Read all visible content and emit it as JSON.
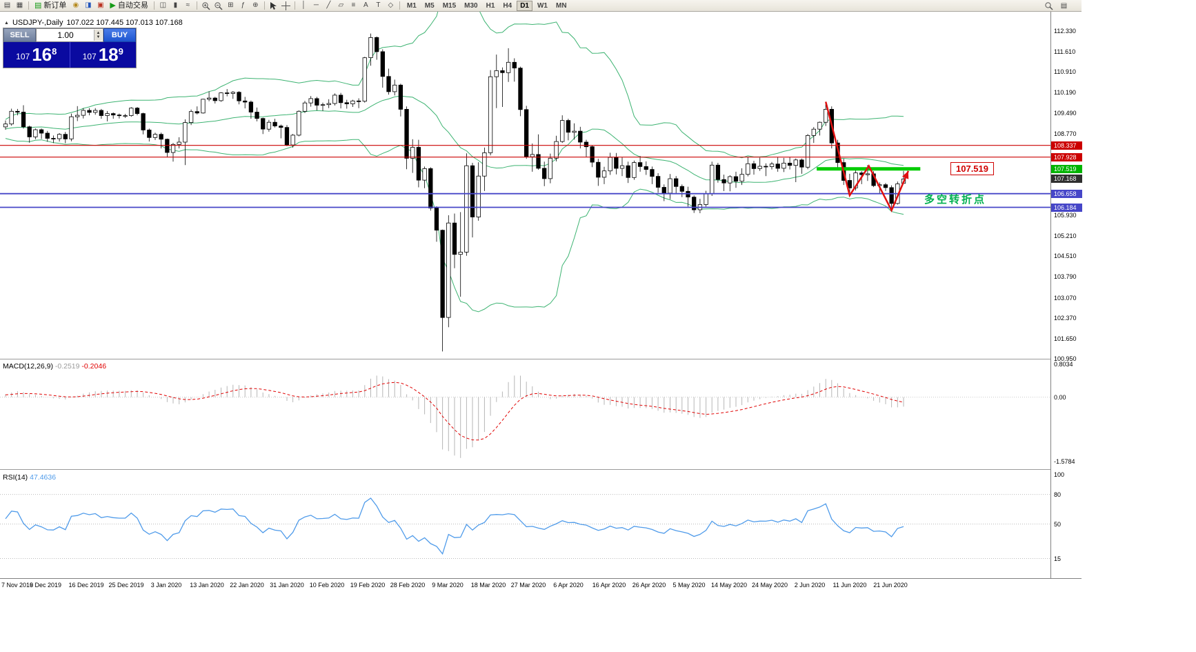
{
  "toolbar": {
    "new_order": "新订单",
    "auto_trading": "自动交易",
    "timeframes": [
      "M1",
      "M5",
      "M15",
      "M30",
      "H1",
      "H4",
      "D1",
      "W1",
      "MN"
    ],
    "active_timeframe": "D1"
  },
  "trade_panel": {
    "sell_label": "SELL",
    "buy_label": "BUY",
    "lot": "1.00",
    "sell_price": {
      "prefix": "107",
      "big": "16",
      "sup": "8"
    },
    "buy_price": {
      "prefix": "107",
      "big": "18",
      "sup": "9"
    }
  },
  "chart_data": {
    "type": "candlestick",
    "title": "USDJPY-,Daily",
    "symbol": "USDJPY-",
    "timeframe": "Daily",
    "ohlc_display": [
      "107.022",
      "107.445",
      "107.013",
      "107.168"
    ],
    "y_range": [
      100.95,
      112.33
    ],
    "x_labels": [
      "7 Nov 2019",
      "6 Dec 2019",
      "16 Dec 2019",
      "25 Dec 2019",
      "3 Jan 2020",
      "13 Jan 2020",
      "22 Jan 2020",
      "31 Jan 2020",
      "10 Feb 2020",
      "19 Feb 2020",
      "28 Feb 2020",
      "9 Mar 2020",
      "18 Mar 2020",
      "27 Mar 2020",
      "6 Apr 2020",
      "16 Apr 2020",
      "26 Apr 2020",
      "5 May 2020",
      "14 May 2020",
      "24 May 2020",
      "2 Jun 2020",
      "11 Jun 2020",
      "21 Jun 2020"
    ],
    "y_axis_labels": [
      "112.330",
      "111.610",
      "110.910",
      "110.190",
      "109.490",
      "108.770",
      "105.930",
      "105.210",
      "104.510",
      "103.790",
      "103.070",
      "102.370",
      "101.650",
      "100.950"
    ],
    "price_tags": [
      {
        "price": 108.337,
        "text": "108.337",
        "bg": "#CC0000"
      },
      {
        "price": 107.928,
        "text": "107.928",
        "bg": "#CC0000"
      },
      {
        "price": 107.519,
        "text": "107.519",
        "bg": "#00B400"
      },
      {
        "price": 107.168,
        "text": "107.168",
        "bg": "#2F2F2F"
      },
      {
        "price": 106.658,
        "text": "106.658",
        "bg": "#4646C8"
      },
      {
        "price": 106.184,
        "text": "106.184",
        "bg": "#4646C8"
      }
    ],
    "lines": [
      {
        "price": 108.337,
        "color": "#CC0000",
        "width": 1.2
      },
      {
        "price": 107.928,
        "color": "#CC0000",
        "width": 1.2
      },
      {
        "price": 106.658,
        "color": "#4646C8",
        "width": 1.8
      },
      {
        "price": 106.184,
        "color": "#4646C8",
        "width": 1.8
      }
    ],
    "support_level": {
      "price": 107.519,
      "label": "107.519",
      "color": "#00CC00",
      "from_index": 135.5,
      "to_index": 152.8,
      "width": 5
    },
    "annotation": {
      "text": "多空转折点",
      "color": "#00B050"
    },
    "zigzag": {
      "color": "#E01010",
      "width": 2.5,
      "points": [
        [
          137,
          109.85
        ],
        [
          141,
          106.6
        ],
        [
          144.2,
          107.62
        ],
        [
          148,
          106.08
        ],
        [
          150.8,
          107.45
        ]
      ]
    },
    "bollinger": {
      "period": 20,
      "deviation": 2,
      "color": "#3CB371"
    },
    "macd": {
      "label": "MACD(12,26,9)",
      "fast": 12,
      "slow": 26,
      "signal": 9,
      "value_main": "-0.2519",
      "value_signal": "-0.2046",
      "scale": [
        "0.8034",
        "0.00",
        "-1.5784"
      ],
      "range": [
        0.8034,
        -1.5784
      ],
      "hist_color": "#B6B6B6",
      "signal_color": "#E00000"
    },
    "rsi": {
      "label": "RSI(14)",
      "period": 14,
      "value": "47.4636",
      "levels": [
        80,
        50,
        15
      ],
      "scale_labels": [
        "100",
        "80",
        "50",
        "15"
      ],
      "range": [
        0,
        100
      ],
      "color": "#4F9BEA"
    },
    "indicator_warmup": [
      108.7,
      108.88,
      109.05,
      108.95,
      108.6,
      108.42,
      108.55,
      108.8,
      109.1,
      109.0,
      108.75,
      108.55,
      108.68,
      108.9,
      109.15,
      109.05,
      108.85,
      108.65,
      108.78,
      108.95,
      109.1,
      108.98,
      108.8,
      108.92,
      109.05,
      108.98
    ],
    "candles": [
      [
        108.98,
        109.2,
        108.88,
        109.08
      ],
      [
        109.08,
        109.61,
        109.02,
        109.52
      ],
      [
        109.52,
        109.6,
        109.38,
        109.49
      ],
      [
        109.49,
        109.73,
        108.92,
        108.98
      ],
      [
        108.98,
        109.02,
        108.43,
        108.63
      ],
      [
        108.63,
        108.92,
        108.55,
        108.88
      ],
      [
        108.88,
        108.92,
        108.56,
        108.76
      ],
      [
        108.76,
        108.84,
        108.46,
        108.58
      ],
      [
        108.58,
        108.68,
        108.42,
        108.57
      ],
      [
        108.57,
        108.76,
        108.47,
        108.72
      ],
      [
        108.72,
        108.8,
        108.41,
        108.56
      ],
      [
        108.56,
        109.44,
        108.48,
        109.33
      ],
      [
        109.33,
        109.7,
        109.18,
        109.38
      ],
      [
        109.38,
        109.63,
        109.27,
        109.55
      ],
      [
        109.55,
        109.63,
        109.38,
        109.48
      ],
      [
        109.48,
        109.63,
        109.4,
        109.55
      ],
      [
        109.55,
        109.6,
        109.26,
        109.37
      ],
      [
        109.37,
        109.53,
        109.17,
        109.44
      ],
      [
        109.44,
        109.48,
        109.26,
        109.39
      ],
      [
        109.39,
        109.44,
        109.27,
        109.37
      ],
      [
        109.37,
        109.43,
        109.29,
        109.37
      ],
      [
        109.37,
        109.66,
        109.33,
        109.63
      ],
      [
        109.63,
        109.67,
        109.38,
        109.44
      ],
      [
        109.44,
        109.47,
        108.72,
        108.87
      ],
      [
        108.87,
        108.92,
        108.47,
        108.61
      ],
      [
        108.61,
        108.78,
        108.52,
        108.72
      ],
      [
        108.72,
        108.78,
        108.23,
        108.55
      ],
      [
        108.55,
        108.57,
        107.92,
        108.09
      ],
      [
        108.09,
        108.42,
        107.77,
        108.37
      ],
      [
        108.37,
        108.62,
        108.23,
        108.45
      ],
      [
        108.45,
        109.24,
        107.65,
        109.13
      ],
      [
        109.13,
        109.58,
        109.04,
        109.51
      ],
      [
        109.51,
        109.69,
        109.41,
        109.46
      ],
      [
        109.46,
        109.95,
        109.44,
        109.94
      ],
      [
        109.94,
        110.21,
        109.87,
        109.98
      ],
      [
        109.98,
        110.02,
        109.79,
        109.89
      ],
      [
        109.89,
        110.18,
        109.85,
        110.16
      ],
      [
        110.16,
        110.29,
        110.04,
        110.14
      ],
      [
        110.14,
        110.22,
        109.95,
        110.18
      ],
      [
        110.18,
        110.22,
        109.76,
        109.88
      ],
      [
        109.88,
        110.02,
        109.62,
        109.84
      ],
      [
        109.84,
        109.89,
        109.26,
        109.49
      ],
      [
        109.49,
        109.65,
        109.17,
        109.27
      ],
      [
        109.27,
        109.3,
        108.73,
        108.9
      ],
      [
        108.9,
        109.22,
        108.81,
        109.14
      ],
      [
        109.14,
        109.26,
        108.96,
        109.01
      ],
      [
        109.01,
        109.06,
        108.58,
        108.96
      ],
      [
        108.96,
        109.04,
        108.31,
        108.35
      ],
      [
        108.35,
        108.73,
        108.26,
        108.69
      ],
      [
        108.69,
        109.55,
        108.65,
        109.52
      ],
      [
        109.52,
        109.88,
        109.46,
        109.81
      ],
      [
        109.81,
        110.05,
        109.68,
        109.96
      ],
      [
        109.96,
        110.02,
        109.55,
        109.73
      ],
      [
        109.73,
        109.82,
        109.53,
        109.75
      ],
      [
        109.75,
        109.94,
        109.63,
        109.79
      ],
      [
        109.79,
        110.14,
        109.72,
        110.08
      ],
      [
        110.08,
        110.16,
        109.62,
        109.82
      ],
      [
        109.82,
        109.92,
        109.61,
        109.78
      ],
      [
        109.78,
        109.92,
        109.67,
        109.88
      ],
      [
        109.88,
        109.97,
        109.63,
        109.87
      ],
      [
        109.87,
        111.41,
        109.82,
        111.38
      ],
      [
        111.38,
        112.22,
        111.1,
        112.08
      ],
      [
        112.08,
        112.12,
        111.31,
        111.59
      ],
      [
        111.59,
        111.67,
        110.34,
        110.73
      ],
      [
        110.73,
        111.0,
        110.1,
        110.2
      ],
      [
        110.2,
        110.62,
        110.07,
        110.43
      ],
      [
        110.43,
        110.48,
        109.34,
        109.59
      ],
      [
        109.59,
        109.69,
        107.51,
        107.89
      ],
      [
        107.89,
        108.55,
        107.38,
        108.27
      ],
      [
        108.27,
        108.53,
        106.88,
        107.13
      ],
      [
        107.13,
        107.6,
        106.85,
        107.53
      ],
      [
        107.53,
        107.58,
        106.07,
        106.16
      ],
      [
        106.16,
        106.22,
        104.99,
        105.39
      ],
      [
        105.39,
        105.41,
        101.18,
        102.36
      ],
      [
        102.36,
        105.91,
        102.02,
        105.64
      ],
      [
        105.64,
        105.97,
        104.07,
        104.55
      ],
      [
        104.55,
        106.02,
        103.08,
        104.63
      ],
      [
        104.63,
        108.06,
        104.5,
        107.63
      ],
      [
        107.63,
        107.73,
        105.14,
        105.85
      ],
      [
        105.85,
        107.75,
        105.72,
        107.27
      ],
      [
        107.27,
        108.26,
        106.75,
        108.08
      ],
      [
        108.08,
        110.95,
        107.99,
        110.72
      ],
      [
        110.72,
        111.49,
        109.63,
        110.93
      ],
      [
        110.93,
        111.04,
        109.67,
        110.86
      ],
      [
        110.86,
        111.71,
        110.54,
        111.22
      ],
      [
        111.22,
        111.36,
        110.55,
        111.02
      ],
      [
        111.02,
        111.07,
        109.35,
        109.58
      ],
      [
        109.58,
        109.71,
        107.87,
        107.94
      ],
      [
        107.94,
        108.4,
        107.42,
        108.02
      ],
      [
        108.02,
        108.72,
        107.49,
        107.54
      ],
      [
        107.54,
        107.77,
        106.92,
        107.18
      ],
      [
        107.18,
        108.05,
        107.02,
        107.89
      ],
      [
        107.89,
        108.67,
        107.78,
        108.47
      ],
      [
        108.47,
        109.38,
        108.42,
        109.2
      ],
      [
        109.2,
        109.26,
        108.51,
        108.79
      ],
      [
        108.79,
        109.1,
        108.54,
        108.83
      ],
      [
        108.83,
        108.98,
        108.23,
        108.45
      ],
      [
        108.45,
        108.53,
        107.93,
        108.29
      ],
      [
        108.29,
        108.33,
        107.58,
        107.75
      ],
      [
        107.75,
        107.87,
        106.93,
        107.23
      ],
      [
        107.23,
        107.59,
        106.99,
        107.45
      ],
      [
        107.45,
        108.08,
        107.31,
        107.92
      ],
      [
        107.92,
        108.07,
        107.33,
        107.54
      ],
      [
        107.54,
        107.92,
        107.27,
        107.63
      ],
      [
        107.63,
        107.77,
        107.03,
        107.22
      ],
      [
        107.22,
        107.81,
        107.14,
        107.74
      ],
      [
        107.74,
        107.97,
        107.42,
        107.6
      ],
      [
        107.6,
        107.78,
        107.31,
        107.5
      ],
      [
        107.5,
        107.6,
        106.99,
        107.26
      ],
      [
        107.26,
        107.37,
        106.69,
        106.88
      ],
      [
        106.88,
        106.98,
        106.4,
        106.68
      ],
      [
        106.68,
        107.34,
        106.47,
        107.18
      ],
      [
        107.18,
        107.27,
        106.64,
        106.91
      ],
      [
        106.91,
        106.98,
        106.54,
        106.74
      ],
      [
        106.74,
        106.9,
        106.21,
        106.54
      ],
      [
        106.54,
        106.6,
        105.99,
        106.1
      ],
      [
        106.1,
        106.48,
        105.98,
        106.28
      ],
      [
        106.28,
        106.76,
        106.21,
        106.65
      ],
      [
        106.65,
        107.77,
        106.58,
        107.65
      ],
      [
        107.65,
        107.73,
        107.04,
        107.15
      ],
      [
        107.15,
        107.32,
        106.75,
        107.03
      ],
      [
        107.03,
        107.3,
        106.74,
        107.25
      ],
      [
        107.25,
        107.42,
        106.86,
        107.09
      ],
      [
        107.09,
        107.54,
        106.96,
        107.33
      ],
      [
        107.33,
        107.94,
        107.26,
        107.7
      ],
      [
        107.7,
        107.8,
        107.32,
        107.53
      ],
      [
        107.53,
        107.91,
        107.45,
        107.61
      ],
      [
        107.61,
        107.71,
        107.27,
        107.6
      ],
      [
        107.6,
        107.76,
        107.5,
        107.69
      ],
      [
        107.69,
        107.92,
        107.42,
        107.54
      ],
      [
        107.54,
        107.9,
        107.41,
        107.72
      ],
      [
        107.72,
        107.93,
        107.5,
        107.64
      ],
      [
        107.64,
        107.88,
        107.06,
        107.83
      ],
      [
        107.83,
        107.88,
        107.35,
        107.58
      ],
      [
        107.58,
        108.73,
        107.51,
        108.68
      ],
      [
        108.68,
        108.97,
        108.42,
        108.9
      ],
      [
        108.9,
        109.16,
        108.68,
        109.14
      ],
      [
        109.14,
        109.85,
        109.01,
        109.59
      ],
      [
        109.59,
        109.69,
        108.23,
        108.42
      ],
      [
        108.42,
        108.53,
        107.55,
        107.74
      ],
      [
        107.74,
        107.87,
        106.96,
        107.12
      ],
      [
        107.12,
        107.35,
        106.58,
        106.86
      ],
      [
        106.86,
        107.52,
        106.77,
        107.38
      ],
      [
        107.38,
        107.44,
        106.99,
        107.32
      ],
      [
        107.32,
        107.65,
        107.1,
        107.35
      ],
      [
        107.35,
        107.44,
        106.89,
        106.94
      ],
      [
        106.94,
        107.05,
        106.66,
        106.97
      ],
      [
        106.97,
        107.03,
        106.75,
        106.87
      ],
      [
        106.87,
        106.95,
        106.06,
        106.32
      ],
      [
        106.32,
        107.08,
        106.28,
        107.0
      ],
      [
        107.02,
        107.45,
        107.01,
        107.17
      ]
    ]
  }
}
